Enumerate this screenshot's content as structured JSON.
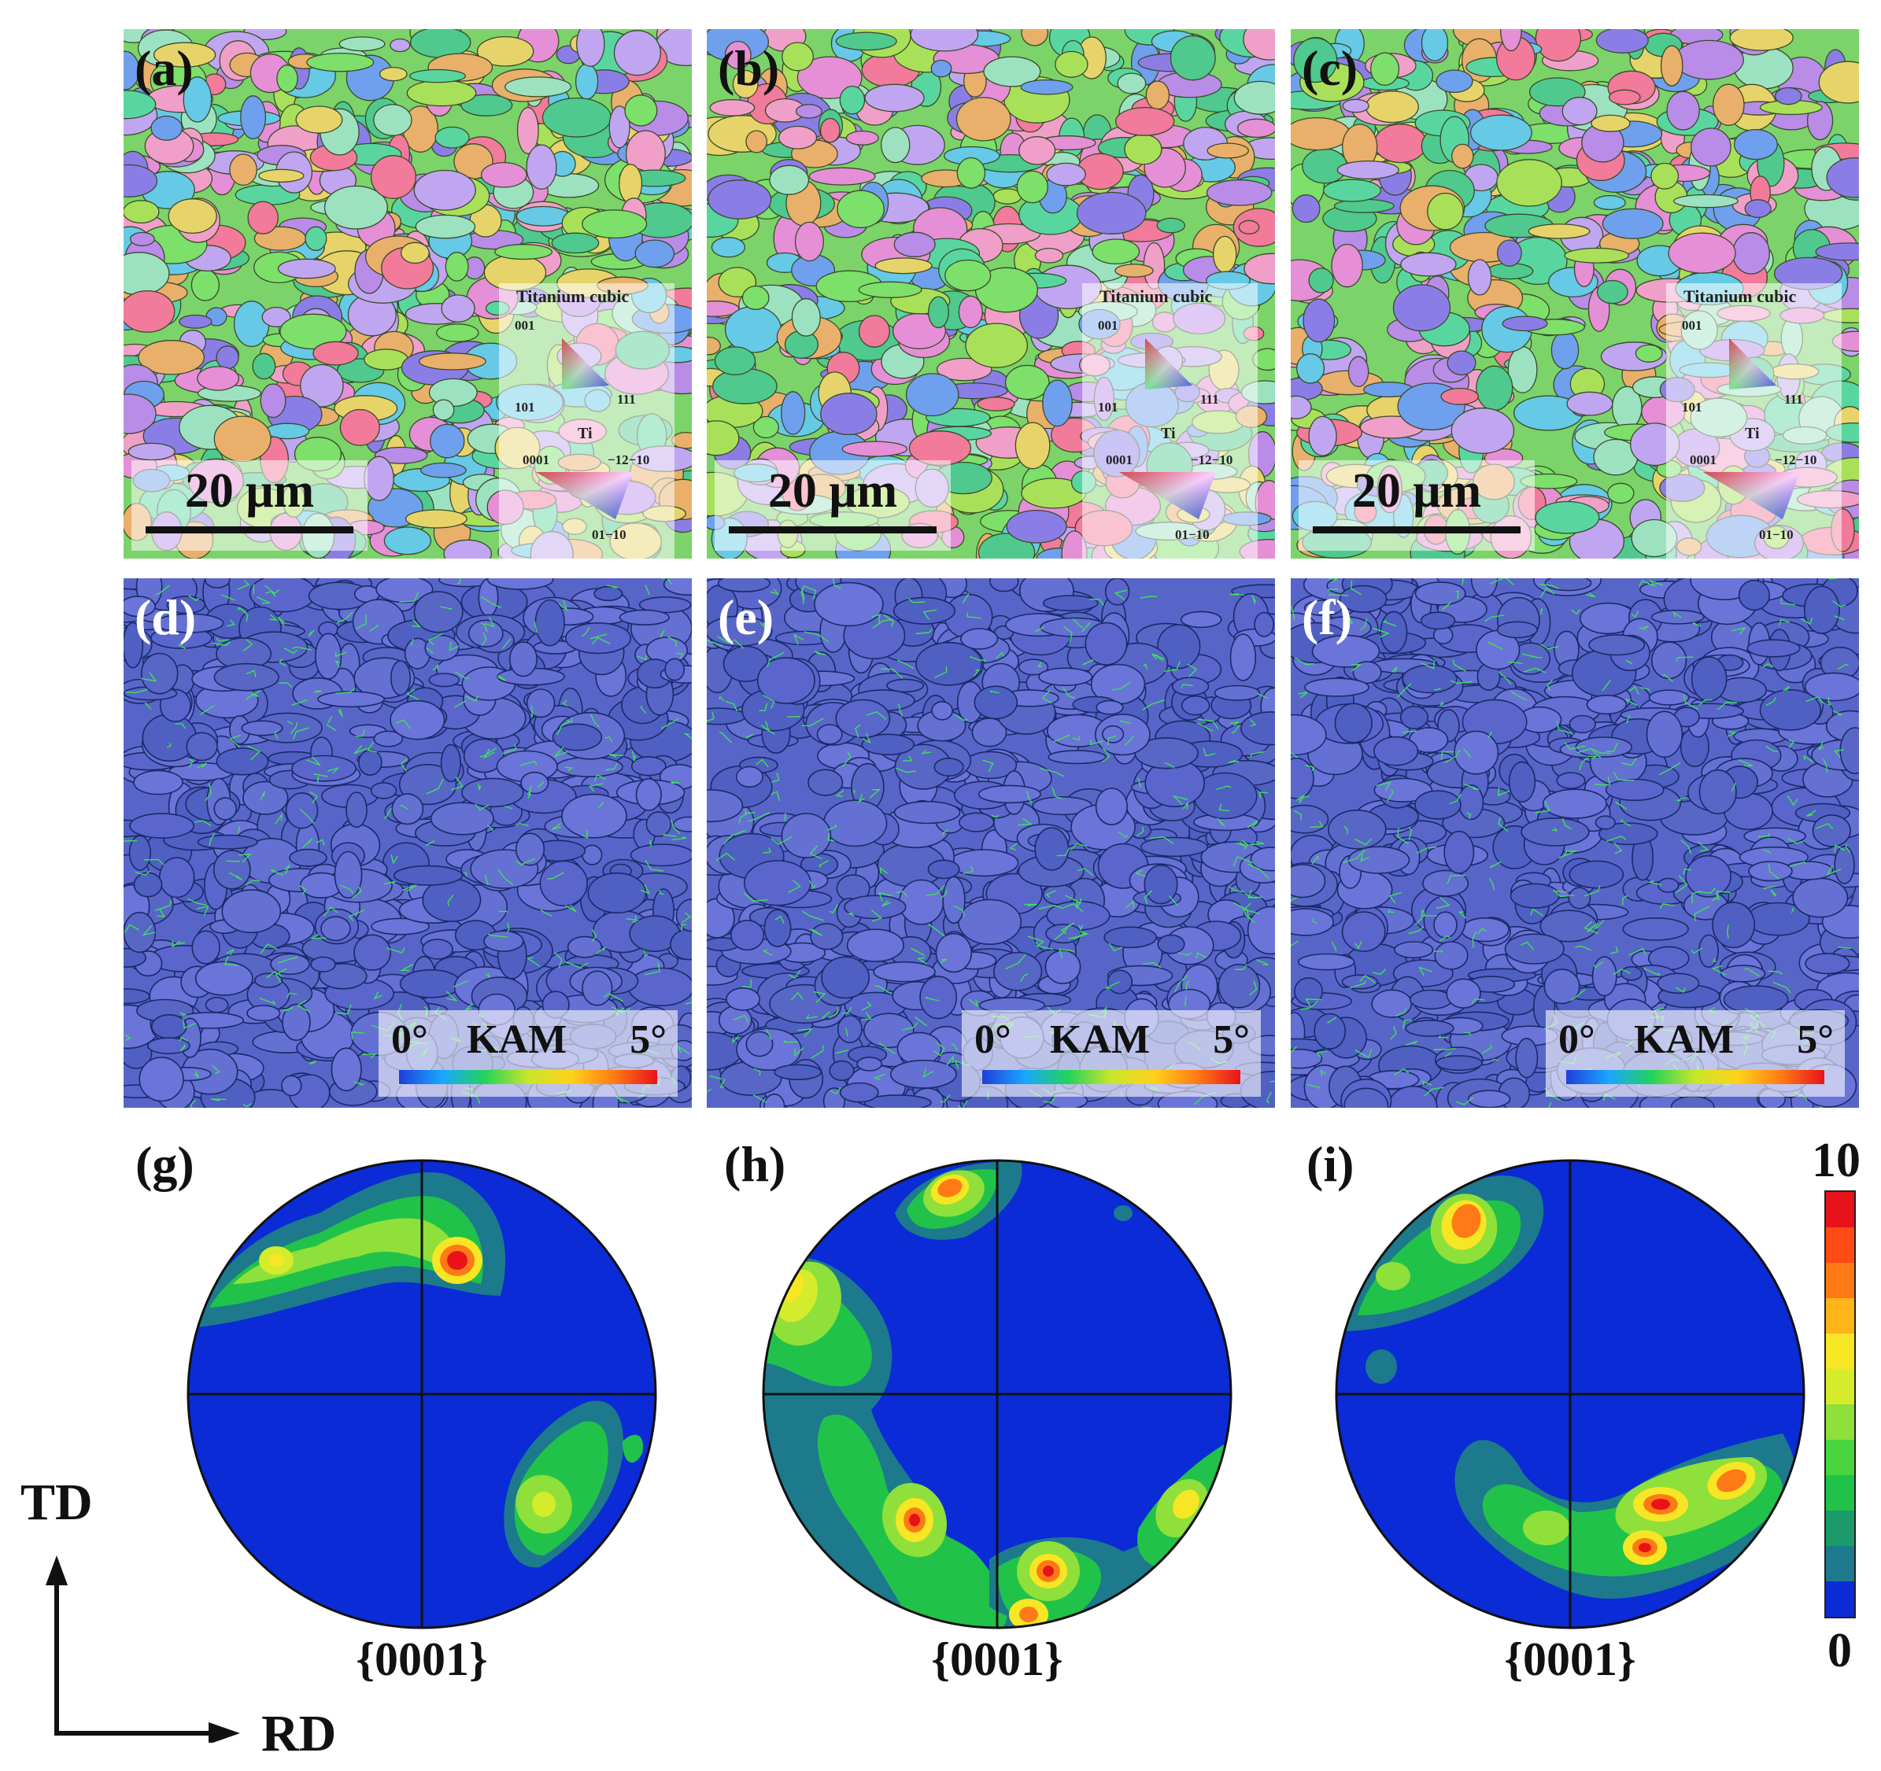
{
  "ipf_panels": [
    {
      "label": "(a)",
      "scale": "20 μm"
    },
    {
      "label": "(b)",
      "scale": "20 μm"
    },
    {
      "label": "(c)",
      "scale": "20 μm"
    }
  ],
  "ipf_legend": {
    "cubic_title": "Titanium cubic",
    "cubic_001": "001",
    "cubic_101": "101",
    "cubic_111": "111",
    "hex_title": "Ti",
    "hex_0001": "0001",
    "hex_1210": "−12−10",
    "hex_0110": "01−10"
  },
  "kam_panels": [
    {
      "label": "(d)"
    },
    {
      "label": "(e)"
    },
    {
      "label": "(f)"
    }
  ],
  "kam_legend": {
    "min": "0°",
    "title": "KAM",
    "max": "5°"
  },
  "pole_figures": [
    {
      "label": "(g)",
      "plane": "{0001}"
    },
    {
      "label": "(h)",
      "plane": "{0001}"
    },
    {
      "label": "(i)",
      "plane": "{0001}"
    }
  ],
  "axes": {
    "vertical": "TD",
    "horizontal": "RD"
  },
  "colorbar": {
    "max": "10",
    "min": "0"
  }
}
